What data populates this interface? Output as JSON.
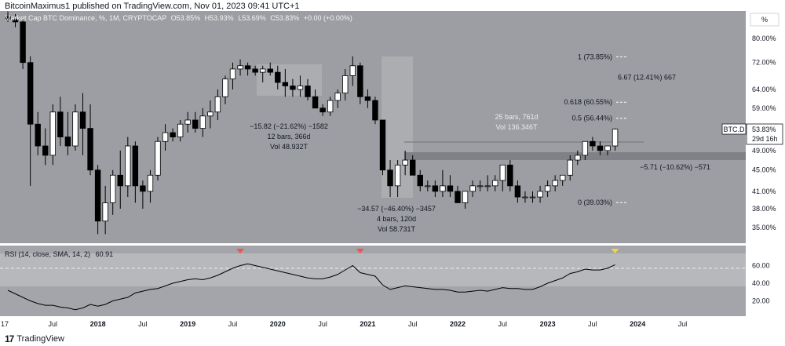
{
  "publish_line": "BitcoinMaximus1 published on TradingView.com, Nov 01, 2023 09:41 UTC+1",
  "header": {
    "title": "Market Cap BTC Dominance, %, 1M, CRYPTOCAP",
    "open": "O53.85%",
    "high": "H53.93%",
    "low": "L53.69%",
    "close": "C53.83%",
    "change": "+0.00 (+0.00%)"
  },
  "axis_unit": "%",
  "symbol_label": "BTC.D",
  "price_label": "53.83%",
  "countdown_label": "29d 16h",
  "fib_levels": [
    {
      "label": "1 (73.85%)",
      "value": 73.85
    },
    {
      "label": "6.67 (12.41%) 667",
      "value": 67.5
    },
    {
      "label": "0.618 (60.55%)",
      "value": 60.55
    },
    {
      "label": "0.5 (56.44%)",
      "value": 56.44
    },
    {
      "label": "0 (39.03%)",
      "value": 39.03
    }
  ],
  "measurements": {
    "m1": [
      "−15.82 (−21.62%) −1582",
      "12 bars, 366d",
      "Vol 48.932T"
    ],
    "m2": [
      "−34.57 (−46.40%) −3457",
      "4 bars, 120d",
      "Vol 58.731T"
    ],
    "m3": [
      "25 bars, 761d",
      "Vol 136.346T"
    ],
    "m4": "−5.71 (−10.62%) −571"
  },
  "rsi_label": "RSI (14, close, SMA, 14, 2)",
  "rsi_value": "60.91",
  "footer_brand": "TradingView",
  "chart_data": [
    {
      "type": "candlestick",
      "title": "Market Cap BTC Dominance, %, 1M, CRYPTOCAP",
      "y_ticks": [
        80.0,
        72.0,
        64.0,
        59.0,
        53.83,
        49.0,
        45.0,
        41.0,
        38.0,
        35.0
      ],
      "y_tick_labels": [
        "80.00%",
        "72.00%",
        "64.00%",
        "59.00%",
        "53.83%",
        "49.00%",
        "45.00%",
        "41.00%",
        "38.00%",
        "35.00%"
      ],
      "ylim": [
        32.0,
        91.0
      ],
      "scale": "log",
      "x_tick_labels": [
        "17",
        "Jul",
        "2018",
        "Jul",
        "2019",
        "Jul",
        "2020",
        "Jul",
        "2021",
        "Jul",
        "2022",
        "Jul",
        "2023",
        "Jul",
        "2024",
        "Jul"
      ],
      "x_tick_months": [
        0,
        6,
        12,
        18,
        24,
        30,
        36,
        42,
        48,
        54,
        60,
        66,
        72,
        78,
        84,
        90
      ],
      "start": "2017-01",
      "candles": [
        [
          88,
          90,
          86,
          87
        ],
        [
          87,
          89,
          84,
          86
        ],
        [
          86,
          87,
          70,
          72
        ],
        [
          72,
          74,
          42,
          55
        ],
        [
          55,
          58,
          48,
          50
        ],
        [
          50,
          54,
          46,
          48
        ],
        [
          48,
          60,
          46,
          58
        ],
        [
          58,
          62,
          50,
          52
        ],
        [
          52,
          58,
          48,
          50
        ],
        [
          50,
          60,
          49,
          58
        ],
        [
          58,
          63,
          48,
          54
        ],
        [
          54,
          60,
          44,
          45
        ],
        [
          45,
          46,
          34,
          36
        ],
        [
          36,
          42,
          34,
          39
        ],
        [
          39,
          45,
          37,
          44
        ],
        [
          44,
          49,
          38,
          42
        ],
        [
          42,
          52,
          40,
          50
        ],
        [
          50,
          51,
          39,
          42
        ],
        [
          42,
          43,
          38,
          41
        ],
        [
          41,
          45,
          39,
          44
        ],
        [
          44,
          52,
          43,
          51
        ],
        [
          51,
          55,
          49,
          53
        ],
        [
          53,
          54,
          51,
          52
        ],
        [
          52,
          56,
          51,
          55
        ],
        [
          55,
          58,
          53,
          56
        ],
        [
          56,
          58,
          53,
          54
        ],
        [
          54,
          59,
          52,
          57
        ],
        [
          57,
          61,
          54,
          58
        ],
        [
          58,
          64,
          56,
          62
        ],
        [
          62,
          68,
          60,
          67
        ],
        [
          67,
          72,
          64,
          70
        ],
        [
          70,
          73,
          68,
          71
        ],
        [
          71,
          72,
          68,
          70
        ],
        [
          70,
          71,
          68,
          69
        ],
        [
          69,
          71,
          66,
          70
        ],
        [
          70,
          72,
          68,
          69
        ],
        [
          69,
          71,
          64,
          66
        ],
        [
          66,
          70,
          62,
          65
        ],
        [
          65,
          67,
          62,
          64
        ],
        [
          64,
          68,
          62,
          65
        ],
        [
          65,
          67,
          61,
          62
        ],
        [
          62,
          64,
          59,
          59
        ],
        [
          59,
          60,
          57,
          58
        ],
        [
          58,
          62,
          57,
          61
        ],
        [
          61,
          64,
          59,
          63
        ],
        [
          63,
          70,
          61,
          68
        ],
        [
          68,
          74,
          65,
          71
        ],
        [
          71,
          72,
          60,
          62
        ],
        [
          62,
          64,
          59,
          61
        ],
        [
          61,
          62,
          55,
          56
        ],
        [
          56,
          56,
          44,
          45
        ],
        [
          45,
          47,
          40,
          42
        ],
        [
          42,
          47,
          40,
          46
        ],
        [
          46,
          49,
          44,
          47
        ],
        [
          47,
          48,
          44,
          44
        ],
        [
          44,
          45,
          41,
          42
        ],
        [
          42,
          43,
          41,
          42
        ],
        [
          42,
          43,
          40,
          41
        ],
        [
          41,
          45,
          40,
          42
        ],
        [
          42,
          44,
          40,
          41
        ],
        [
          41,
          42,
          39,
          39
        ],
        [
          39,
          41,
          38,
          41
        ],
        [
          41,
          43,
          40,
          42
        ],
        [
          42,
          43,
          41,
          42
        ],
        [
          42,
          44,
          41,
          42
        ],
        [
          42,
          44,
          41,
          43
        ],
        [
          43,
          46,
          41,
          46
        ],
        [
          46,
          47,
          41,
          42
        ],
        [
          42,
          43,
          39,
          40
        ],
        [
          40,
          41,
          39,
          40
        ],
        [
          40,
          41,
          39,
          40
        ],
        [
          40,
          42,
          39,
          41
        ],
        [
          41,
          43,
          40,
          42
        ],
        [
          42,
          44,
          41,
          43
        ],
        [
          43,
          44,
          42,
          44
        ],
        [
          44,
          48,
          43,
          47
        ],
        [
          47,
          49,
          46,
          48
        ],
        [
          48,
          51,
          47,
          51
        ],
        [
          51,
          52,
          49,
          50
        ],
        [
          50,
          51,
          48,
          49
        ],
        [
          49,
          50,
          48,
          50
        ],
        [
          50,
          54,
          49,
          53.83
        ]
      ]
    },
    {
      "type": "line",
      "title": "RSI (14, close, SMA, 14, 2)",
      "y_ticks": [
        60.0,
        40.0,
        20.0
      ],
      "y_tick_labels": [
        "60.00",
        "40.00",
        "20.00"
      ],
      "ylim": [
        0,
        80
      ],
      "upper_band": 70,
      "middle": 50,
      "lower_band": 30,
      "values": [
        32,
        28,
        24,
        20,
        17,
        15,
        15,
        13,
        12,
        10,
        12,
        16,
        14,
        16,
        20,
        22,
        24,
        29,
        31,
        33,
        34,
        37,
        40,
        42,
        44,
        45,
        44,
        46,
        49,
        53,
        57,
        60,
        62,
        60,
        58,
        56,
        54,
        52,
        50,
        48,
        46,
        45,
        45,
        47,
        50,
        55,
        60,
        52,
        50,
        48,
        38,
        33,
        35,
        37,
        36,
        35,
        34,
        33,
        33,
        32,
        30,
        30,
        31,
        32,
        31,
        33,
        35,
        34,
        34,
        33,
        33,
        36,
        40,
        43,
        46,
        51,
        53,
        56,
        55,
        55,
        57,
        60.91
      ],
      "last_value": 60.91,
      "markers": [
        {
          "month": 31,
          "label": "down-triangle",
          "color": "#ef5350"
        },
        {
          "month": 47,
          "label": "down-triangle",
          "color": "#ef5350"
        },
        {
          "month": 81,
          "label": "down-triangle",
          "color": "#f5d04a"
        }
      ]
    }
  ]
}
